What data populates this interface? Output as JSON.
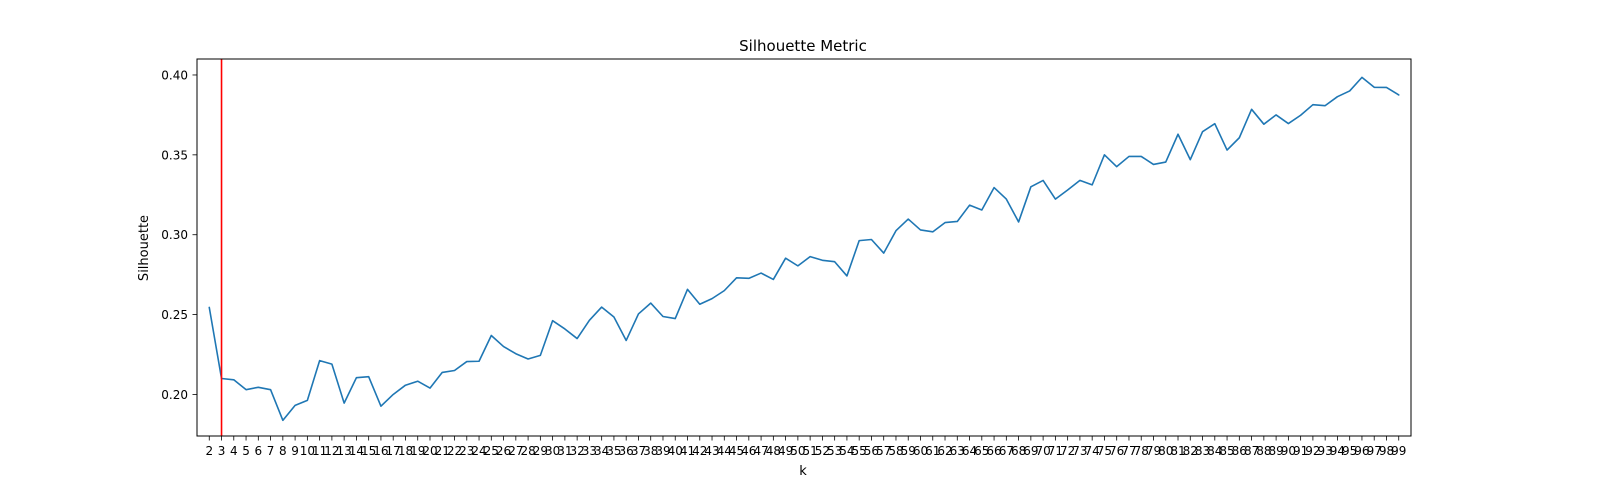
{
  "chart_data": {
    "type": "line",
    "title": "Silhouette Metric",
    "xlabel": "k",
    "ylabel": "Silhouette",
    "x": [
      2,
      3,
      4,
      5,
      6,
      7,
      8,
      9,
      10,
      11,
      12,
      13,
      14,
      15,
      16,
      17,
      18,
      19,
      20,
      21,
      22,
      23,
      24,
      25,
      26,
      27,
      28,
      29,
      30,
      31,
      32,
      33,
      34,
      35,
      36,
      37,
      38,
      39,
      40,
      41,
      42,
      43,
      44,
      45,
      46,
      47,
      48,
      49,
      50,
      51,
      52,
      53,
      54,
      55,
      56,
      57,
      58,
      59,
      60,
      61,
      62,
      63,
      64,
      65,
      66,
      67,
      68,
      69,
      70,
      71,
      72,
      73,
      74,
      75,
      76,
      77,
      78,
      79,
      80,
      81,
      82,
      83,
      84,
      85,
      86,
      87,
      88,
      89,
      90,
      91,
      92,
      93,
      94,
      95,
      96,
      97,
      98,
      99
    ],
    "series": [
      {
        "color": "#1f77b4",
        "values": [
          0.2545,
          0.21,
          0.2092,
          0.203,
          0.2045,
          0.203,
          0.1838,
          0.1932,
          0.1963,
          0.2212,
          0.219,
          0.1946,
          0.2105,
          0.2111,
          0.1927,
          0.2,
          0.2058,
          0.2083,
          0.204,
          0.2138,
          0.215,
          0.2206,
          0.2208,
          0.2369,
          0.23,
          0.2255,
          0.2222,
          0.2245,
          0.2462,
          0.241,
          0.235,
          0.2464,
          0.2547,
          0.2485,
          0.2338,
          0.2504,
          0.2572,
          0.2488,
          0.2475,
          0.2658,
          0.2565,
          0.26,
          0.265,
          0.273,
          0.2727,
          0.276,
          0.272,
          0.2853,
          0.2805,
          0.2863,
          0.284,
          0.2831,
          0.2742,
          0.2963,
          0.297,
          0.2885,
          0.3025,
          0.3098,
          0.303,
          0.3018,
          0.3076,
          0.3083,
          0.3185,
          0.3155,
          0.3295,
          0.3223,
          0.308,
          0.33,
          0.334,
          0.3223,
          0.328,
          0.334,
          0.3312,
          0.35,
          0.3426,
          0.349,
          0.349,
          0.344,
          0.3455,
          0.3629,
          0.347,
          0.3645,
          0.3695,
          0.353,
          0.3607,
          0.3785,
          0.3692,
          0.375,
          0.3696,
          0.3748,
          0.3814,
          0.3808,
          0.3864,
          0.39,
          0.3985,
          0.3923,
          0.3922,
          0.3875
        ]
      }
    ],
    "vline": {
      "x": 3,
      "color": "#ff0000"
    },
    "xlim": [
      1,
      100
    ],
    "ylim": [
      0.174,
      0.41
    ],
    "yticks": [
      0.2,
      0.25,
      0.3,
      0.35,
      0.4
    ],
    "ytick_labels": [
      "0.20",
      "0.25",
      "0.30",
      "0.35",
      "0.40"
    ],
    "grid": false,
    "legend": false
  }
}
